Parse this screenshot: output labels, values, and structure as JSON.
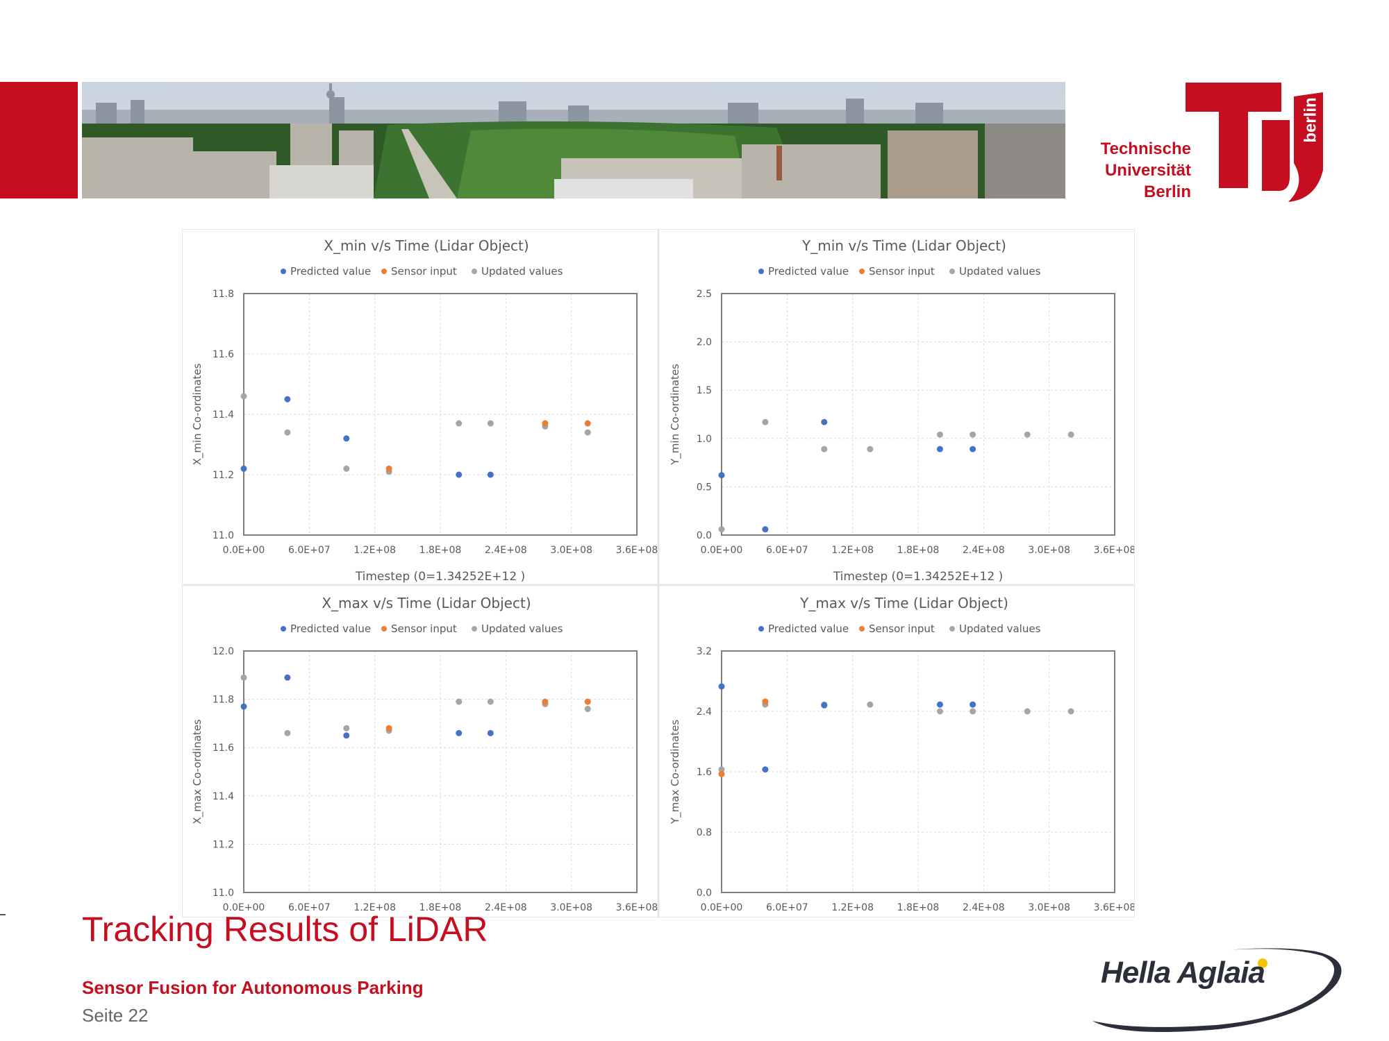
{
  "slide": {
    "title": "Tracking Results of LiDAR",
    "subtitle": "Sensor Fusion for Autonomous Parking",
    "page": "Seite 22"
  },
  "logos": {
    "university_line1": "Technische",
    "university_line2": "Universität",
    "university_line3": "Berlin",
    "university_badge": "berlin",
    "company": "Hella Aglaia"
  },
  "colors": {
    "brand_red": "#c50e1f",
    "predicted": "#4472c4",
    "sensor": "#ed7d31",
    "updated": "#a5a5a5"
  },
  "chart_data": [
    {
      "type": "scatter",
      "title": "X_min v/s Time (Lidar Object)",
      "xlabel": "Timestep (0=1.34252E+12 )",
      "ylabel": "X_min Co-ordinates",
      "xlim": [
        0,
        360000000
      ],
      "ylim": [
        11.0,
        11.8
      ],
      "x_ticks": [
        "0.0E+00",
        "6.0E+07",
        "1.2E+08",
        "1.8E+08",
        "2.4E+08",
        "3.0E+08",
        "3.6E+08"
      ],
      "y_ticks": [
        "11.0",
        "11.2",
        "11.4",
        "11.6",
        "11.8"
      ],
      "legend": "top",
      "grid": true,
      "series": [
        {
          "name": "Predicted value",
          "points": [
            [
              0,
              11.22
            ],
            [
              40000000,
              11.45
            ],
            [
              94000000,
              11.32
            ],
            [
              197000000,
              11.2
            ],
            [
              226000000,
              11.2
            ]
          ]
        },
        {
          "name": "Sensor input",
          "points": [
            [
              133000000,
              11.22
            ],
            [
              276000000,
              11.37
            ],
            [
              315000000,
              11.37
            ]
          ]
        },
        {
          "name": "Updated values",
          "points": [
            [
              0,
              11.46
            ],
            [
              40000000,
              11.34
            ],
            [
              94000000,
              11.22
            ],
            [
              133000000,
              11.21
            ],
            [
              197000000,
              11.37
            ],
            [
              226000000,
              11.37
            ],
            [
              276000000,
              11.36
            ],
            [
              315000000,
              11.34
            ]
          ]
        }
      ]
    },
    {
      "type": "scatter",
      "title": "Y_min v/s Time (Lidar Object)",
      "xlabel": "Timestep (0=1.34252E+12 )",
      "ylabel": "Y_min Co-ordinates",
      "xlim": [
        0,
        360000000
      ],
      "ylim": [
        0.0,
        2.5
      ],
      "x_ticks": [
        "0.0E+00",
        "6.0E+07",
        "1.2E+08",
        "1.8E+08",
        "2.4E+08",
        "3.0E+08",
        "3.6E+08"
      ],
      "y_ticks": [
        "0.0",
        "0.5",
        "1.0",
        "1.5",
        "2.0",
        "2.5"
      ],
      "legend": "top",
      "grid": true,
      "series": [
        {
          "name": "Predicted value",
          "points": [
            [
              0,
              0.62
            ],
            [
              40000000,
              0.06
            ],
            [
              94000000,
              1.17
            ],
            [
              200000000,
              0.89
            ],
            [
              230000000,
              0.89
            ]
          ]
        },
        {
          "name": "Sensor input",
          "points": []
        },
        {
          "name": "Updated values",
          "points": [
            [
              0,
              0.06
            ],
            [
              40000000,
              1.17
            ],
            [
              94000000,
              0.89
            ],
            [
              136000000,
              0.89
            ],
            [
              200000000,
              1.04
            ],
            [
              230000000,
              1.04
            ],
            [
              280000000,
              1.04
            ],
            [
              320000000,
              1.04
            ]
          ]
        }
      ]
    },
    {
      "type": "scatter",
      "title": "X_max v/s Time (Lidar Object)",
      "xlabel": "",
      "ylabel": "X_max Co-ordinates",
      "xlim": [
        0,
        360000000
      ],
      "ylim": [
        11.0,
        12.0
      ],
      "x_ticks": [
        "0.0E+00",
        "6.0E+07",
        "1.2E+08",
        "1.8E+08",
        "2.4E+08",
        "3.0E+08",
        "3.6E+08"
      ],
      "y_ticks": [
        "11.0",
        "11.2",
        "11.4",
        "11.6",
        "11.8",
        "12.0"
      ],
      "legend": "top",
      "grid": true,
      "series": [
        {
          "name": "Predicted value",
          "points": [
            [
              0,
              11.77
            ],
            [
              40000000,
              11.89
            ],
            [
              94000000,
              11.65
            ],
            [
              197000000,
              11.66
            ],
            [
              226000000,
              11.66
            ]
          ]
        },
        {
          "name": "Sensor input",
          "points": [
            [
              133000000,
              11.68
            ],
            [
              276000000,
              11.79
            ],
            [
              315000000,
              11.79
            ]
          ]
        },
        {
          "name": "Updated values",
          "points": [
            [
              0,
              11.89
            ],
            [
              40000000,
              11.66
            ],
            [
              94000000,
              11.68
            ],
            [
              133000000,
              11.67
            ],
            [
              197000000,
              11.79
            ],
            [
              226000000,
              11.79
            ],
            [
              276000000,
              11.78
            ],
            [
              315000000,
              11.76
            ]
          ]
        }
      ]
    },
    {
      "type": "scatter",
      "title": "Y_max v/s Time (Lidar Object)",
      "xlabel": "",
      "ylabel": "Y_max Co-ordinates",
      "xlim": [
        0,
        360000000
      ],
      "ylim": [
        0.0,
        3.2
      ],
      "x_ticks": [
        "0.0E+00",
        "6.0E+07",
        "1.2E+08",
        "1.8E+08",
        "2.4E+08",
        "3.0E+08",
        "3.6E+08"
      ],
      "y_ticks": [
        "0.0",
        "0.8",
        "1.6",
        "2.4",
        "3.2"
      ],
      "legend": "top",
      "grid": true,
      "series": [
        {
          "name": "Predicted value",
          "points": [
            [
              0,
              2.73
            ],
            [
              40000000,
              1.63
            ],
            [
              94000000,
              2.48
            ],
            [
              200000000,
              2.49
            ],
            [
              230000000,
              2.49
            ]
          ]
        },
        {
          "name": "Sensor input",
          "points": [
            [
              0,
              1.57
            ],
            [
              40000000,
              2.53
            ]
          ]
        },
        {
          "name": "Updated values",
          "points": [
            [
              0,
              1.63
            ],
            [
              40000000,
              2.49
            ],
            [
              94000000,
              2.49
            ],
            [
              136000000,
              2.49
            ],
            [
              200000000,
              2.4
            ],
            [
              230000000,
              2.4
            ],
            [
              280000000,
              2.4
            ],
            [
              320000000,
              2.4
            ]
          ]
        }
      ]
    }
  ]
}
